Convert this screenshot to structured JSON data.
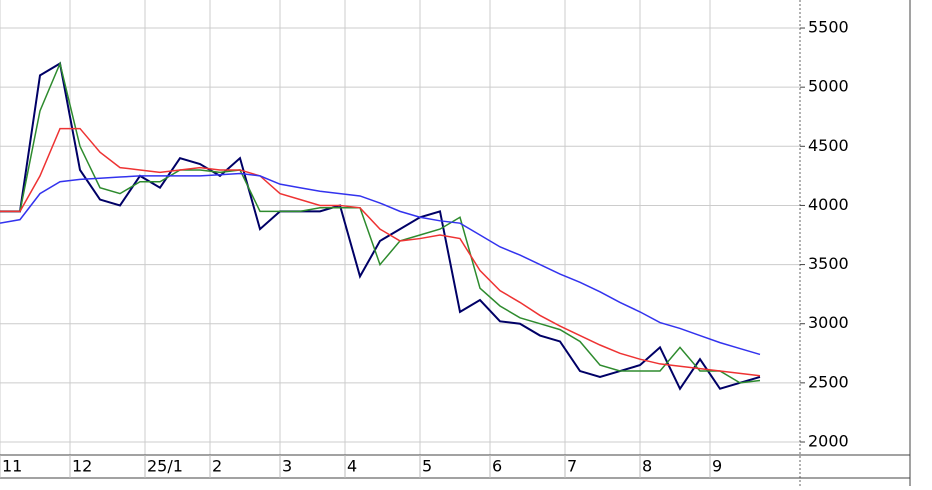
{
  "chart_data": {
    "type": "line",
    "x": [
      0,
      4,
      8,
      12,
      16,
      20,
      24,
      28,
      32,
      36,
      40,
      44,
      48,
      52,
      56,
      60,
      64,
      68,
      72,
      76,
      80,
      84,
      88,
      92,
      96,
      100,
      104,
      108,
      112,
      116,
      120,
      124,
      128,
      132,
      136,
      140,
      144,
      148,
      152
    ],
    "series": [
      {
        "color": "#000066",
        "values": [
          3950,
          3950,
          5100,
          5200,
          4300,
          4050,
          4000,
          4250,
          4150,
          4400,
          4350,
          4250,
          4400,
          3800,
          3950,
          3950,
          3950,
          4000,
          3400,
          3700,
          3800,
          3900,
          3950,
          3100,
          3200,
          3020,
          3000,
          2900,
          2850,
          2600,
          2550,
          2600,
          2650,
          2800,
          2450,
          2700,
          2450,
          2500,
          2550
        ]
      },
      {
        "color": "#2e8b2e",
        "values": [
          3950,
          3950,
          4800,
          5200,
          4500,
          4150,
          4100,
          4200,
          4200,
          4300,
          4300,
          4280,
          4300,
          3950,
          3950,
          3950,
          3980,
          3980,
          3980,
          3500,
          3700,
          3750,
          3800,
          3900,
          3300,
          3150,
          3050,
          3000,
          2950,
          2850,
          2650,
          2600,
          2600,
          2600,
          2800,
          2600,
          2600,
          2500,
          2520
        ]
      },
      {
        "color": "#ee3333",
        "values": [
          3950,
          3950,
          4250,
          4650,
          4650,
          4450,
          4320,
          4300,
          4280,
          4300,
          4320,
          4300,
          4300,
          4250,
          4100,
          4050,
          4000,
          4000,
          3980,
          3800,
          3700,
          3720,
          3750,
          3720,
          3450,
          3280,
          3180,
          3070,
          2980,
          2900,
          2820,
          2750,
          2700,
          2660,
          2640,
          2620,
          2600,
          2580,
          2560
        ]
      },
      {
        "color": "#3333ee",
        "values": [
          3850,
          3880,
          4100,
          4200,
          4220,
          4230,
          4240,
          4250,
          4250,
          4250,
          4250,
          4260,
          4270,
          4250,
          4180,
          4150,
          4120,
          4100,
          4080,
          4020,
          3950,
          3900,
          3870,
          3850,
          3750,
          3650,
          3580,
          3500,
          3420,
          3350,
          3270,
          3180,
          3100,
          3010,
          2960,
          2900,
          2840,
          2790,
          2740
        ]
      }
    ],
    "xlim": [
      0,
      160
    ],
    "xticks": [
      {
        "value": 0,
        "label": "11"
      },
      {
        "value": 14,
        "label": "12"
      },
      {
        "value": 29,
        "label": "25/1"
      },
      {
        "value": 42,
        "label": "2"
      },
      {
        "value": 56,
        "label": "3"
      },
      {
        "value": 69,
        "label": "4"
      },
      {
        "value": 84,
        "label": "5"
      },
      {
        "value": 98,
        "label": "6"
      },
      {
        "value": 113,
        "label": "7"
      },
      {
        "value": 128,
        "label": "8"
      },
      {
        "value": 142,
        "label": "9"
      }
    ],
    "ylim": [
      1890,
      5737
    ],
    "yticks": [
      2000,
      2500,
      3000,
      3500,
      4000,
      4500,
      5000,
      5500
    ],
    "grid": true
  }
}
